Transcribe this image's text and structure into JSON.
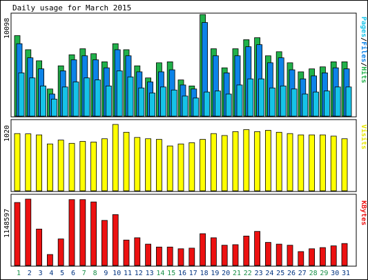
{
  "title": "Daily usage for March 2015",
  "colors": {
    "hits": "#21b14a",
    "files": "#0d83e8",
    "pages": "#16c3e8",
    "visits": "#ffff00",
    "kbytes": "#ec1111",
    "weekend": "#168f46",
    "weekday": "#003380",
    "panel_bg": "#ffffff",
    "outer_bg": "#ffffff"
  },
  "chart_data": [
    {
      "type": "bar",
      "panel": "hits_files_pages",
      "y_max_label": "10098",
      "side_label": {
        "pages": "Pages",
        "files": "Files",
        "hits": "Hits"
      },
      "ylim": [
        0,
        10098
      ],
      "categories": [
        "1",
        "2",
        "3",
        "4",
        "5",
        "6",
        "7",
        "8",
        "9",
        "10",
        "11",
        "12",
        "13",
        "14",
        "15",
        "16",
        "17",
        "18",
        "19",
        "20",
        "21",
        "22",
        "23",
        "24",
        "25",
        "26",
        "27",
        "28",
        "29",
        "30",
        "31"
      ],
      "weekend_days": [
        "1",
        "7",
        "8",
        "14",
        "15",
        "21",
        "22",
        "28",
        "29"
      ],
      "series": [
        {
          "name": "Hits",
          "values": [
            8000,
            6600,
            5500,
            2700,
            5000,
            6100,
            6700,
            6200,
            5400,
            7200,
            6600,
            5000,
            3800,
            5300,
            5400,
            3600,
            3000,
            10098,
            6700,
            4800,
            6700,
            7600,
            7800,
            6000,
            6400,
            5300,
            4400,
            4700,
            4900,
            5400,
            5400
          ]
        },
        {
          "name": "Files",
          "values": [
            7200,
            5800,
            4700,
            2200,
            4500,
            5600,
            6000,
            5600,
            4800,
            6600,
            6000,
            4400,
            3400,
            4400,
            4600,
            3100,
            2700,
            9300,
            6000,
            4300,
            6000,
            6900,
            7100,
            5300,
            5800,
            4600,
            3700,
            4000,
            4300,
            4800,
            4700
          ]
        },
        {
          "name": "Pages",
          "values": [
            4300,
            3800,
            3000,
            1700,
            2900,
            3400,
            3800,
            3600,
            3000,
            4500,
            3900,
            2800,
            2300,
            2900,
            2600,
            2000,
            1800,
            2400,
            2500,
            2200,
            3100,
            3700,
            3700,
            2800,
            3000,
            2700,
            2200,
            2400,
            2500,
            2900,
            2900
          ]
        }
      ]
    },
    {
      "type": "bar",
      "panel": "visits",
      "y_max_label": "1020",
      "side_label": "Visits",
      "ylim": [
        0,
        1020
      ],
      "categories": [
        "1",
        "2",
        "3",
        "4",
        "5",
        "6",
        "7",
        "8",
        "9",
        "10",
        "11",
        "12",
        "13",
        "14",
        "15",
        "16",
        "17",
        "18",
        "19",
        "20",
        "21",
        "22",
        "23",
        "24",
        "25",
        "26",
        "27",
        "28",
        "29",
        "30",
        "31"
      ],
      "series": [
        {
          "name": "Visits",
          "values": [
            880,
            875,
            860,
            720,
            780,
            730,
            760,
            750,
            800,
            1020,
            900,
            820,
            800,
            790,
            690,
            720,
            740,
            790,
            880,
            850,
            910,
            940,
            910,
            930,
            900,
            880,
            860,
            860,
            860,
            840,
            800
          ]
        }
      ]
    },
    {
      "type": "bar",
      "panel": "kbytes",
      "y_max_label": "1148597",
      "side_label": "KBytes",
      "ylim": [
        0,
        1148597
      ],
      "categories": [
        "1",
        "2",
        "3",
        "4",
        "5",
        "6",
        "7",
        "8",
        "9",
        "10",
        "11",
        "12",
        "13",
        "14",
        "15",
        "16",
        "17",
        "18",
        "19",
        "20",
        "21",
        "22",
        "23",
        "24",
        "25",
        "26",
        "27",
        "28",
        "29",
        "30",
        "31"
      ],
      "series": [
        {
          "name": "KBytes",
          "values": [
            1090000,
            1148597,
            630000,
            190000,
            460000,
            1140000,
            1140000,
            1100000,
            780000,
            880000,
            440000,
            480000,
            370000,
            320000,
            320000,
            290000,
            300000,
            550000,
            480000,
            350000,
            360000,
            510000,
            590000,
            400000,
            370000,
            350000,
            240000,
            290000,
            310000,
            340000,
            380000
          ]
        }
      ]
    }
  ]
}
